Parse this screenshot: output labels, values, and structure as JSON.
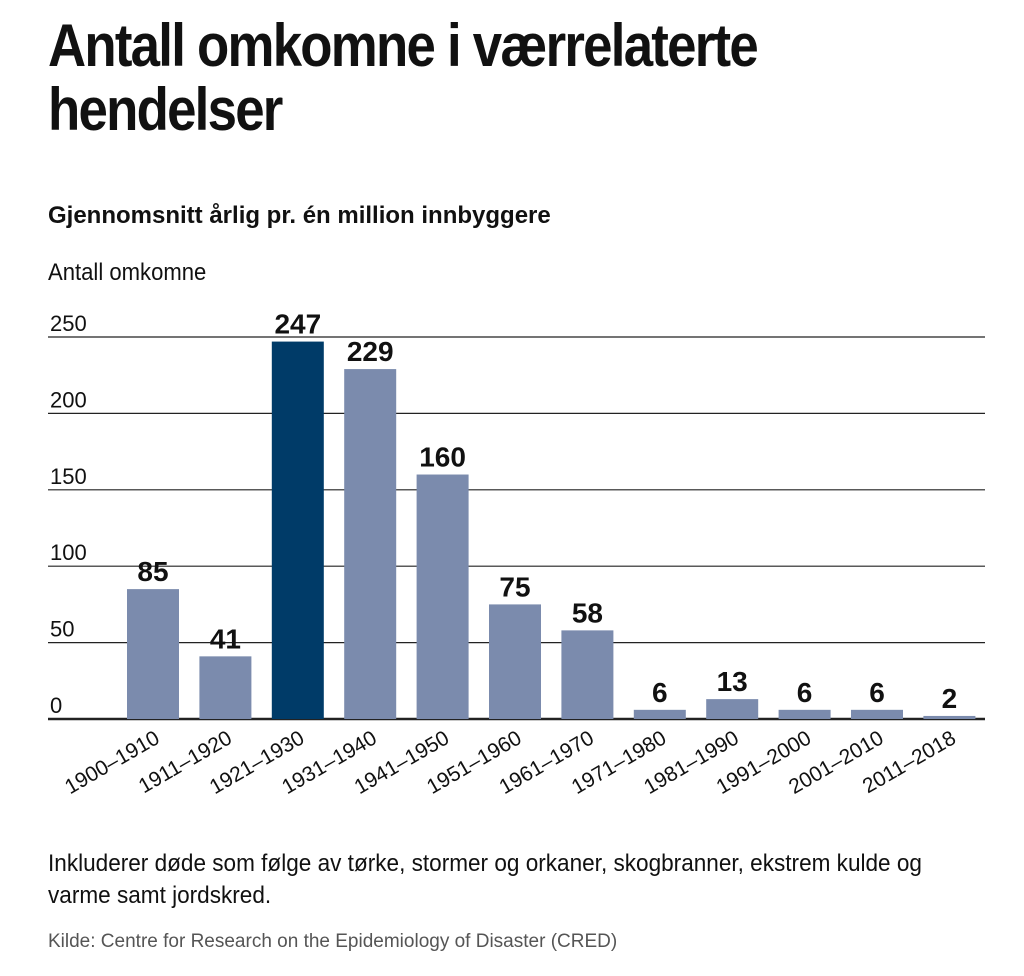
{
  "title": "Antall omkomne i værrelaterte hendelser",
  "subtitle": "Gjennomsnitt årlig pr. én million innbyggere",
  "note": "Inkluderer døde som følge av tørke, stormer og orkaner, skogbranner, ekstrem kulde og varme samt jordskred.",
  "source": "Kilde: Centre for Research on the Epidemiology of Disaster (CRED)",
  "colors": {
    "bar": "#7b8bad",
    "highlight": "#003b68",
    "grid": "#222222",
    "text": "#111111"
  },
  "chart_data": {
    "type": "bar",
    "ylabel": "Antall omkomne",
    "categories": [
      "1900–1910",
      "1911–1920",
      "1921–1930",
      "1931–1940",
      "1941–1950",
      "1951–1960",
      "1961–1970",
      "1971–1980",
      "1981–1990",
      "1991–2000",
      "2001–2010",
      "2011–2018"
    ],
    "values": [
      85,
      41,
      247,
      229,
      160,
      75,
      58,
      6,
      13,
      6,
      6,
      2
    ],
    "highlight_index": 2,
    "ylim": [
      0,
      250
    ],
    "yticks": [
      0,
      50,
      100,
      150,
      200,
      250
    ],
    "grid": true,
    "data_labels": true
  }
}
